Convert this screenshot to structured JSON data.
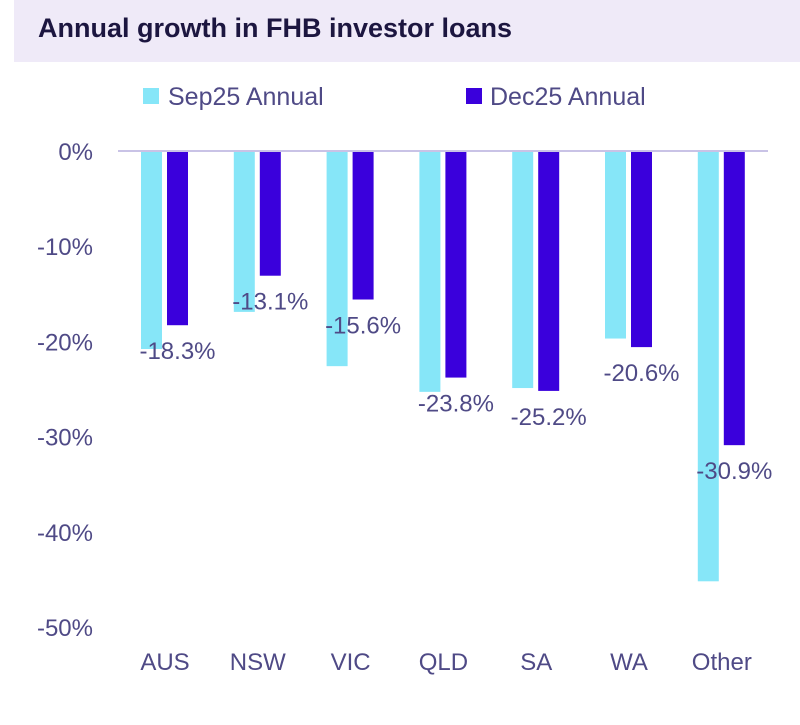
{
  "chart_data": {
    "type": "bar",
    "title": "Annual growth in FHB investor loans",
    "categories": [
      "AUS",
      "NSW",
      "VIC",
      "QLD",
      "SA",
      "WA",
      "Other"
    ],
    "series": [
      {
        "name": "Sep25 Annual",
        "color": "#86e6f8",
        "values": [
          -20.8,
          -16.9,
          -22.6,
          -25.3,
          -24.9,
          -19.7,
          -45.2
        ]
      },
      {
        "name": "Dec25 Annual",
        "color": "#3a00dc",
        "values": [
          -18.3,
          -13.1,
          -15.6,
          -23.8,
          -25.2,
          -20.6,
          -30.9
        ]
      }
    ],
    "data_labels": [
      "-18.3%",
      "-13.1%",
      "-15.6%",
      "-23.8%",
      "-25.2%",
      "-20.6%",
      "-30.9%"
    ],
    "y_ticks": [
      "0%",
      "-10%",
      "-20%",
      "-30%",
      "-40%",
      "-50%"
    ],
    "ylim": [
      -50,
      0
    ],
    "xlabel": "",
    "ylabel": "",
    "grid": false,
    "legend_position": "top",
    "axis_color": "#c9c3e6"
  }
}
